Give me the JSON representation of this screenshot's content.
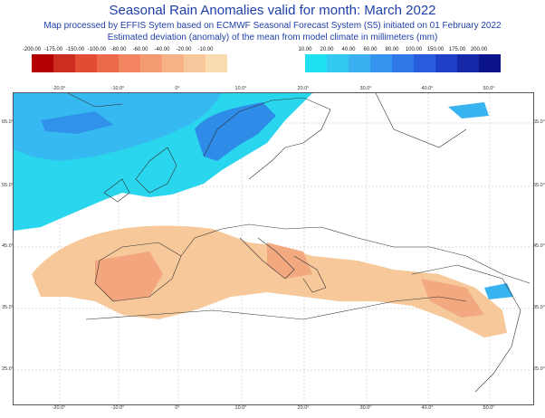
{
  "header": {
    "title": "Seasonal Rain Anomalies valid for month: March 2022",
    "subtitle1": "Map processed by EFFIS Sytem based on ECMWF Seasonal Forecast System (S5) initiated on 01 February 2022",
    "subtitle2": "Estimated deviation (anomaly) of the mean from model climate in millimeters (mm)"
  },
  "legend": {
    "dry": [
      {
        "label": "-200.00",
        "color": "#b30000"
      },
      {
        "label": "-175.00",
        "color": "#cd2d20"
      },
      {
        "label": "-150.00",
        "color": "#e14c33"
      },
      {
        "label": "-100.00",
        "color": "#ec6a4a"
      },
      {
        "label": "-80.00",
        "color": "#f2845f"
      },
      {
        "label": "-60.00",
        "color": "#f49b73"
      },
      {
        "label": "-40.00",
        "color": "#f6b187"
      },
      {
        "label": "-20.00",
        "color": "#f8c79b"
      },
      {
        "label": "-10.00",
        "color": "#fadcb0"
      }
    ],
    "wet": [
      {
        "label": "10.00",
        "color": "#1fe0f0"
      },
      {
        "label": "20.00",
        "color": "#33c8f0"
      },
      {
        "label": "40.00",
        "color": "#3ab0f0"
      },
      {
        "label": "60.00",
        "color": "#3594ee"
      },
      {
        "label": "80.00",
        "color": "#2f78e6"
      },
      {
        "label": "100.00",
        "color": "#275cdc"
      },
      {
        "label": "150.00",
        "color": "#1e40c8"
      },
      {
        "label": "175.00",
        "color": "#1528a8"
      },
      {
        "label": "200.00",
        "color": "#0b148a"
      }
    ]
  },
  "axes": {
    "lon_ticks": [
      "-20.0°",
      "-10.0°",
      "0°",
      "10.0°",
      "20.0°",
      "30.0°",
      "40.0°",
      "50.0°"
    ],
    "lat_ticks": [
      "65.0°",
      "55.0°",
      "45.0°",
      "35.0°",
      "25.0°"
    ]
  },
  "colors": {
    "wet_light": "#2ad6ee",
    "wet_mid": "#38b4f0",
    "wet_dark": "#2a6ee0",
    "dry_light": "#f6c89a",
    "dry_mid": "#f3a57d",
    "land_line": "#333333"
  }
}
